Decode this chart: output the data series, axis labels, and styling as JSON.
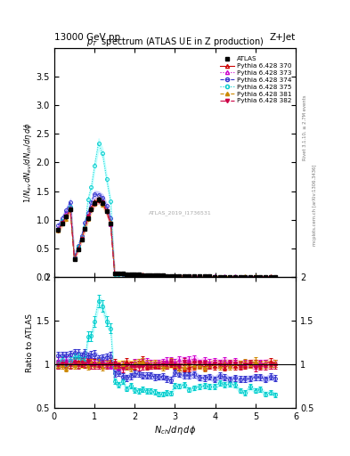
{
  "title_top_left": "13000 GeV pp",
  "title_top_right": "Z+Jet",
  "plot_title": "p$_T$  spectrum (ATLAS UE in Z production)",
  "xlabel": "$N_{ch}/d\\eta\\,d\\phi$",
  "ylabel_main": "$1/N_{ev}\\,dN_{ev}/dN_{ch}/d\\eta\\,d\\phi$",
  "ylabel_ratio": "Ratio to ATLAS",
  "watermark": "ATLAS_2019_I1736531",
  "rivet_text": "Rivet 3.1.10, ≥ 2.7M events",
  "arxiv_text": "mcplots.cern.ch [arXiv:1306.3436]",
  "xlim": [
    0,
    6
  ],
  "ylim_main": [
    0,
    4.0
  ],
  "ylim_ratio": [
    0.5,
    2.0
  ],
  "colors": {
    "ATLAS": "#000000",
    "Pythia 6.428 370": "#cc0000",
    "Pythia 6.428 373": "#cc00cc",
    "Pythia 6.428 374": "#3333cc",
    "Pythia 6.428 375": "#00cccc",
    "Pythia 6.428 381": "#cc8800",
    "Pythia 6.428 382": "#cc0044"
  },
  "band_colors": {
    "ATLAS": "#ffff00",
    "Pythia 6.428 370": "#ffaaaa",
    "Pythia 6.428 373": "#ffaaff",
    "Pythia 6.428 374": "#aaaaff",
    "Pythia 6.428 375": "#aaffff",
    "Pythia 6.428 381": "#ffddaa",
    "Pythia 6.428 382": "#ffaacc"
  }
}
